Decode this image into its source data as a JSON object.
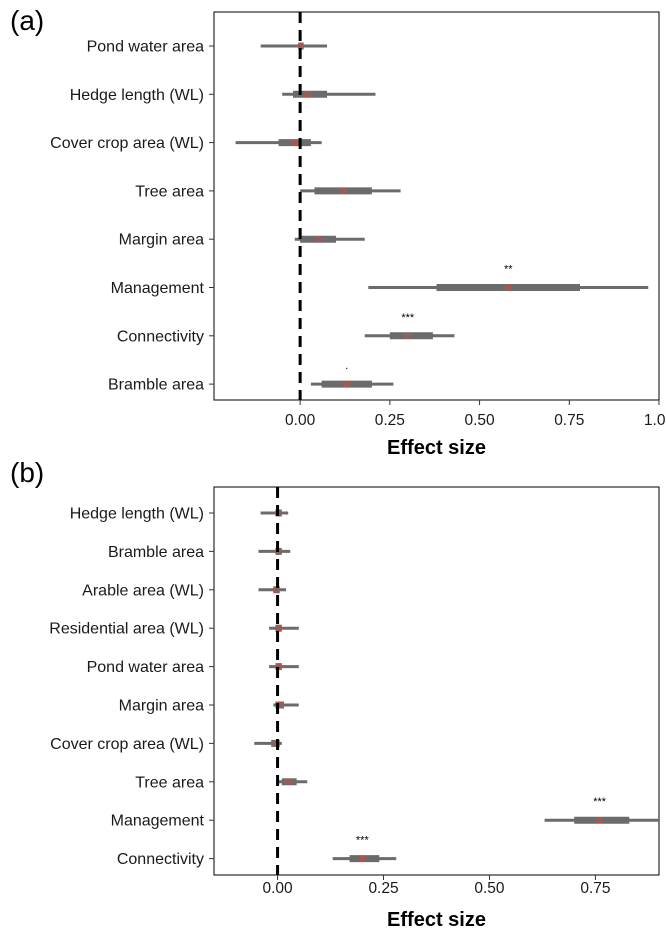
{
  "chart_data": [
    {
      "type": "forest",
      "panel_label": "(a)",
      "xlabel": "Effect size",
      "xlim": [
        -0.24,
        1.0
      ],
      "xticks": [
        "0.00",
        "0.25",
        "0.50",
        "0.75",
        "1.00"
      ],
      "xtick_values": [
        0,
        0.25,
        0.5,
        0.75,
        1.0
      ],
      "reference_line": 0,
      "rows": [
        {
          "label": "Pond water area",
          "estimate": 0.0,
          "inner": [
            -0.005,
            0.01
          ],
          "outer": [
            -0.11,
            0.075
          ],
          "sig": ""
        },
        {
          "label": "Hedge length (WL)",
          "estimate": 0.02,
          "inner": [
            -0.02,
            0.075
          ],
          "outer": [
            -0.05,
            0.21
          ],
          "sig": ""
        },
        {
          "label": "Cover crop area (WL)",
          "estimate": -0.015,
          "inner": [
            -0.06,
            0.03
          ],
          "outer": [
            -0.18,
            0.06
          ],
          "sig": ""
        },
        {
          "label": "Tree area",
          "estimate": 0.12,
          "inner": [
            0.04,
            0.2
          ],
          "outer": [
            0.0,
            0.28
          ],
          "sig": ""
        },
        {
          "label": "Margin area",
          "estimate": 0.05,
          "inner": [
            0.0,
            0.1
          ],
          "outer": [
            -0.015,
            0.18
          ],
          "sig": ""
        },
        {
          "label": "Management",
          "estimate": 0.58,
          "inner": [
            0.38,
            0.78
          ],
          "outer": [
            0.19,
            0.97
          ],
          "sig": "**"
        },
        {
          "label": "Connectivity",
          "estimate": 0.3,
          "inner": [
            0.25,
            0.37
          ],
          "outer": [
            0.18,
            0.43
          ],
          "sig": "***"
        },
        {
          "label": "Bramble area",
          "estimate": 0.13,
          "inner": [
            0.06,
            0.2
          ],
          "outer": [
            0.03,
            0.26
          ],
          "sig": "."
        }
      ]
    },
    {
      "type": "forest",
      "panel_label": "(b)",
      "xlabel": "Effect size",
      "xlim": [
        -0.15,
        0.9
      ],
      "xticks": [
        "0.00",
        "0.25",
        "0.50",
        "0.75"
      ],
      "xtick_values": [
        0,
        0.25,
        0.5,
        0.75
      ],
      "reference_line": 0,
      "rows": [
        {
          "label": "Hedge length (WL)",
          "estimate": 0.0,
          "inner": [
            -0.005,
            0.01
          ],
          "outer": [
            -0.04,
            0.025
          ],
          "sig": ""
        },
        {
          "label": "Bramble area",
          "estimate": 0.0,
          "inner": [
            -0.005,
            0.01
          ],
          "outer": [
            -0.045,
            0.03
          ],
          "sig": ""
        },
        {
          "label": "Arable area (WL)",
          "estimate": -0.005,
          "inner": [
            -0.01,
            0.005
          ],
          "outer": [
            -0.045,
            0.02
          ],
          "sig": ""
        },
        {
          "label": "Residential area (WL)",
          "estimate": 0.005,
          "inner": [
            -0.005,
            0.01
          ],
          "outer": [
            -0.02,
            0.05
          ],
          "sig": ""
        },
        {
          "label": "Pond water area",
          "estimate": 0.005,
          "inner": [
            -0.005,
            0.01
          ],
          "outer": [
            -0.02,
            0.05
          ],
          "sig": ""
        },
        {
          "label": "Margin area",
          "estimate": 0.005,
          "inner": [
            -0.005,
            0.015
          ],
          "outer": [
            -0.01,
            0.05
          ],
          "sig": ""
        },
        {
          "label": "Cover crop area (WL)",
          "estimate": -0.005,
          "inner": [
            -0.015,
            0.005
          ],
          "outer": [
            -0.055,
            0.01
          ],
          "sig": ""
        },
        {
          "label": "Tree area",
          "estimate": 0.025,
          "inner": [
            0.01,
            0.045
          ],
          "outer": [
            0.0,
            0.07
          ],
          "sig": ""
        },
        {
          "label": "Management",
          "estimate": 0.76,
          "inner": [
            0.7,
            0.83
          ],
          "outer": [
            0.63,
            0.9
          ],
          "sig": "***"
        },
        {
          "label": "Connectivity",
          "estimate": 0.2,
          "inner": [
            0.17,
            0.24
          ],
          "outer": [
            0.13,
            0.28
          ],
          "sig": "***"
        }
      ]
    }
  ],
  "style": {
    "bar_color": "#6b6b6b",
    "point_color": "#e0453a",
    "reference_color": "#000000"
  }
}
